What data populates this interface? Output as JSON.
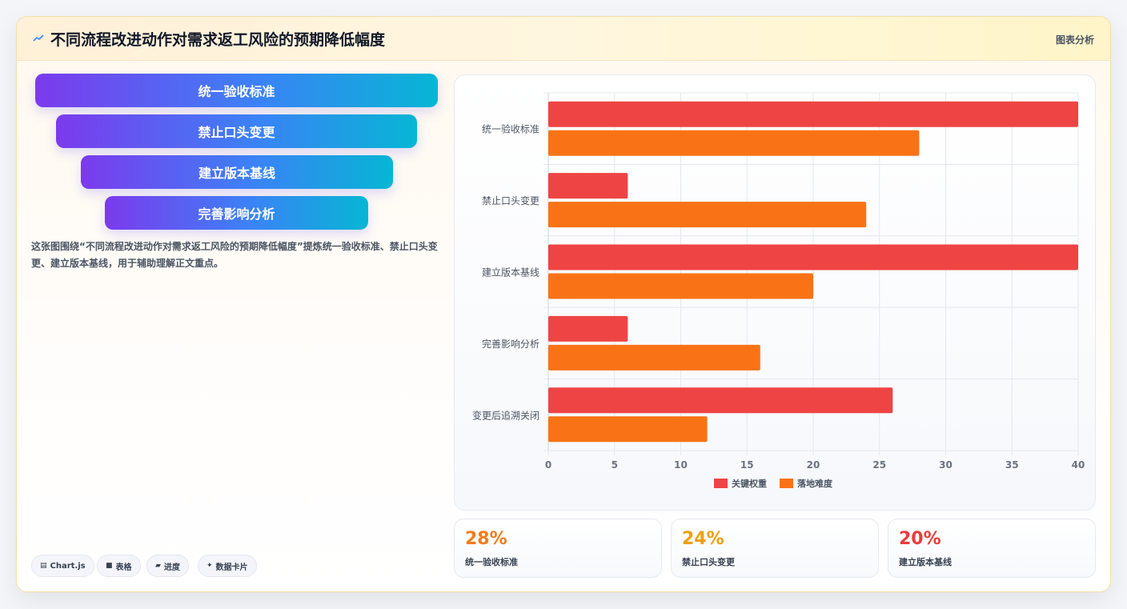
{
  "header": {
    "title": "不同流程改进动作对需求返工风险的预期降低幅度",
    "tag": "图表分析"
  },
  "funnel": [
    {
      "label": "统一验收标准"
    },
    {
      "label": "禁止口头变更"
    },
    {
      "label": "建立版本基线"
    },
    {
      "label": "完善影响分析"
    }
  ],
  "description": "这张图围绕“不同流程改进动作对需求返工风险的预期降低幅度”提炼统一验收标准、禁止口头变更、建立版本基线，用于辅助理解正文重点。",
  "pills": [
    {
      "icon": "chart-icon",
      "glyph": "▤",
      "label": "Chart.js"
    },
    {
      "icon": "table-icon",
      "glyph": "■",
      "label": "表格"
    },
    {
      "icon": "progress-icon",
      "glyph": "▰",
      "label": "进度"
    },
    {
      "icon": "sparkle-icon",
      "glyph": "✦",
      "label": "数据卡片"
    }
  ],
  "stats": [
    {
      "value": "28%",
      "label": "统一验收标准",
      "color": "#f07c1d"
    },
    {
      "value": "24%",
      "label": "禁止口头变更",
      "color": "#eda010"
    },
    {
      "value": "20%",
      "label": "建立版本基线",
      "color": "#ea3b3b"
    }
  ],
  "chart_data": {
    "type": "bar",
    "orientation": "horizontal",
    "categories": [
      "统一验收标准",
      "禁止口头变更",
      "建立版本基线",
      "完善影响分析",
      "变更后追溯关闭"
    ],
    "series": [
      {
        "name": "关键权重",
        "color": "#ef4444",
        "values": [
          40,
          6,
          40,
          6,
          26
        ]
      },
      {
        "name": "落地难度",
        "color": "#f97316",
        "values": [
          28,
          24,
          20,
          16,
          12
        ]
      }
    ],
    "xlim": [
      0,
      40
    ],
    "xticks": [
      0,
      5,
      10,
      15,
      20,
      25,
      30,
      35,
      40
    ],
    "grid": true,
    "legend": "bottom"
  }
}
